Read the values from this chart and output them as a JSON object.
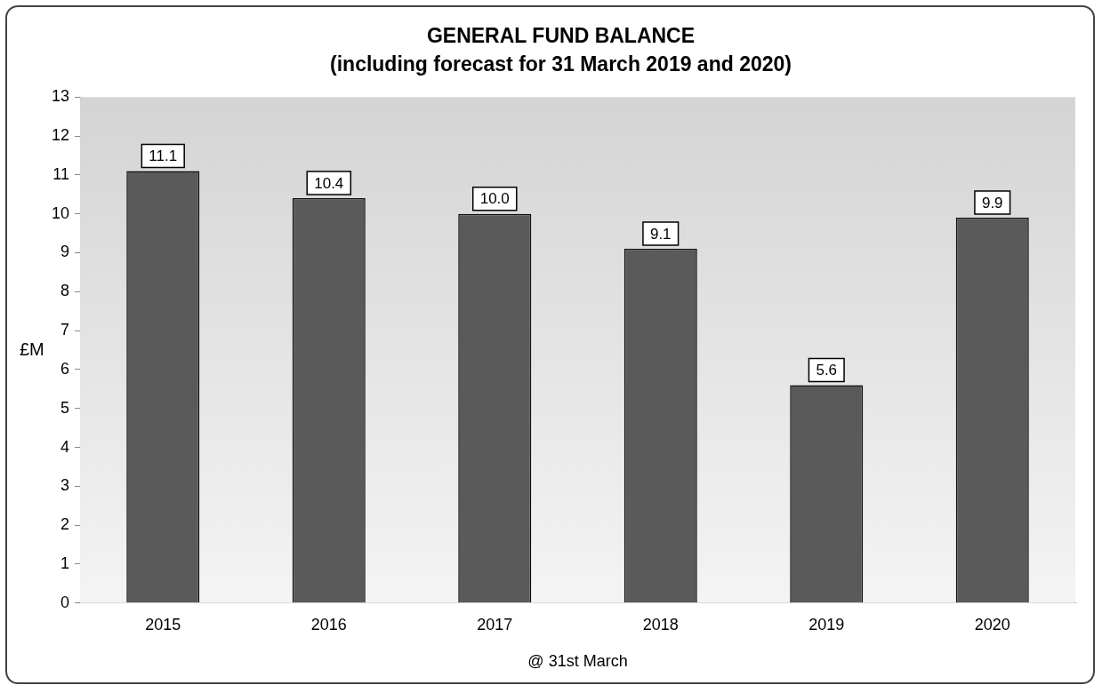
{
  "chart_data": {
    "type": "bar",
    "title": "GENERAL FUND BALANCE",
    "subtitle": "(including forecast for 31 March 2019 and 2020)",
    "xlabel": "@ 31st March",
    "ylabel": "£M",
    "categories": [
      "2015",
      "2016",
      "2017",
      "2018",
      "2019",
      "2020"
    ],
    "values": [
      11.1,
      10.4,
      10.0,
      9.1,
      5.6,
      9.9
    ],
    "value_labels": [
      "11.1",
      "10.4",
      "10.0",
      "9.1",
      "5.6",
      "9.9"
    ],
    "color": "#5a5a5a",
    "ylim": [
      0,
      13
    ],
    "yticks": [
      0,
      1,
      2,
      3,
      4,
      5,
      6,
      7,
      8,
      9,
      10,
      11,
      12,
      13
    ],
    "grid": false,
    "legend": false
  }
}
